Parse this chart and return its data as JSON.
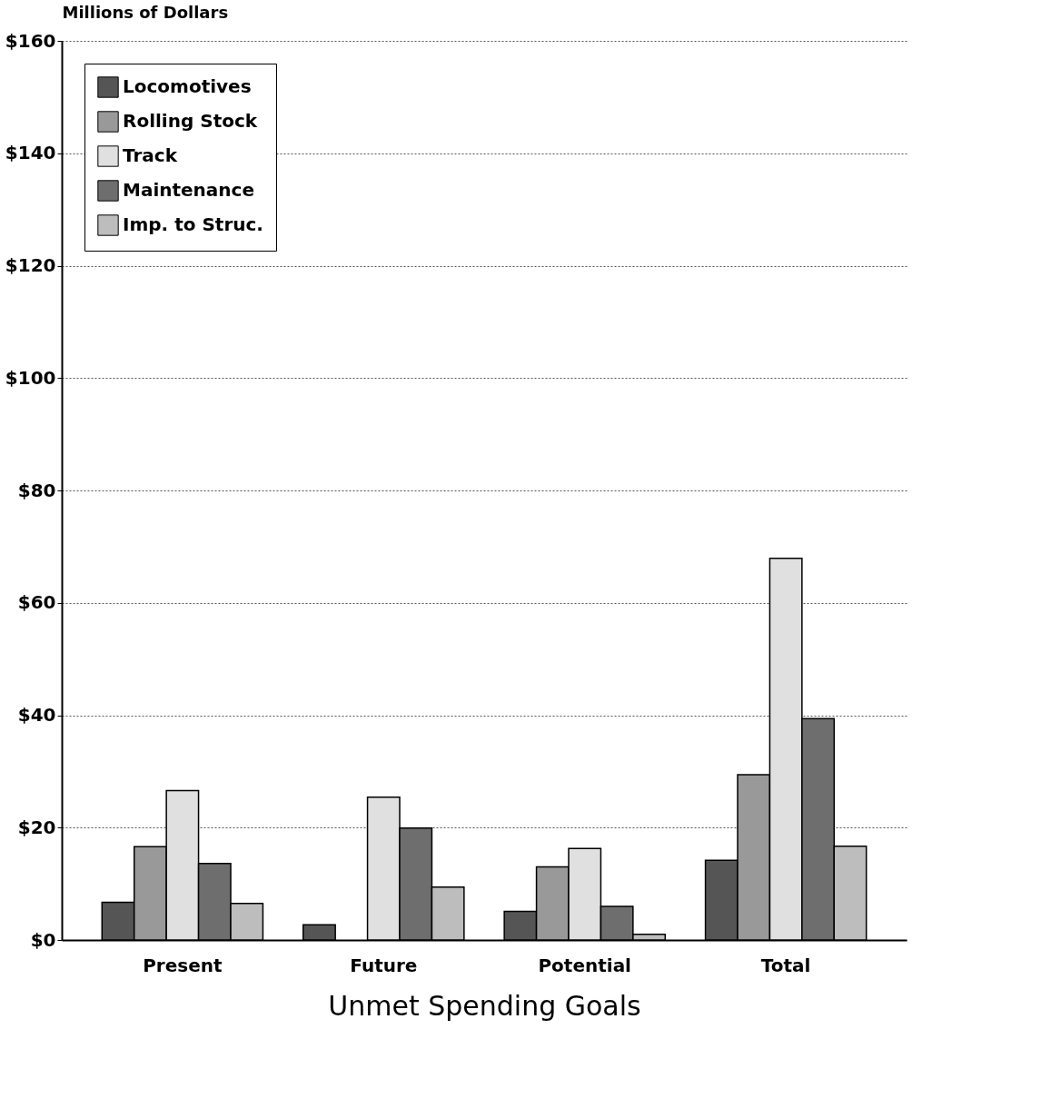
{
  "chart_data": {
    "type": "bar",
    "ylabel": "Millions of Dollars",
    "xlabel": "Unmet Spending Goals",
    "categories": [
      "Present",
      "Future",
      "Potential",
      "Total"
    ],
    "series": [
      {
        "name": "Locomotives",
        "color": "#555555",
        "values": [
          6.7,
          2.7,
          5.1,
          14.2
        ]
      },
      {
        "name": "Rolling Stock",
        "color": "#999999",
        "values": [
          16.6,
          null,
          13.0,
          29.4
        ]
      },
      {
        "name": "Track",
        "color": "#e0e0e0",
        "values": [
          26.6,
          25.4,
          16.3,
          67.9
        ]
      },
      {
        "name": "Maintenance",
        "color": "#6e6e6e",
        "values": [
          13.6,
          19.9,
          6.0,
          39.4
        ]
      },
      {
        "name": "Imp. to Struc.",
        "color": "#bdbdbd",
        "values": [
          6.5,
          9.4,
          1.0,
          16.7
        ]
      }
    ],
    "ylim": [
      0,
      160
    ],
    "yticks": [
      {
        "value": 0,
        "label": "$0"
      },
      {
        "value": 20,
        "label": "$20"
      },
      {
        "value": 40,
        "label": "$40"
      },
      {
        "value": 60,
        "label": "$60"
      },
      {
        "value": 80,
        "label": "$80"
      },
      {
        "value": 100,
        "label": "$100"
      },
      {
        "value": 120,
        "label": "$120"
      },
      {
        "value": 140,
        "label": "$140"
      },
      {
        "value": 160,
        "label": "$160"
      }
    ],
    "grid": "y",
    "legend": "top left"
  }
}
